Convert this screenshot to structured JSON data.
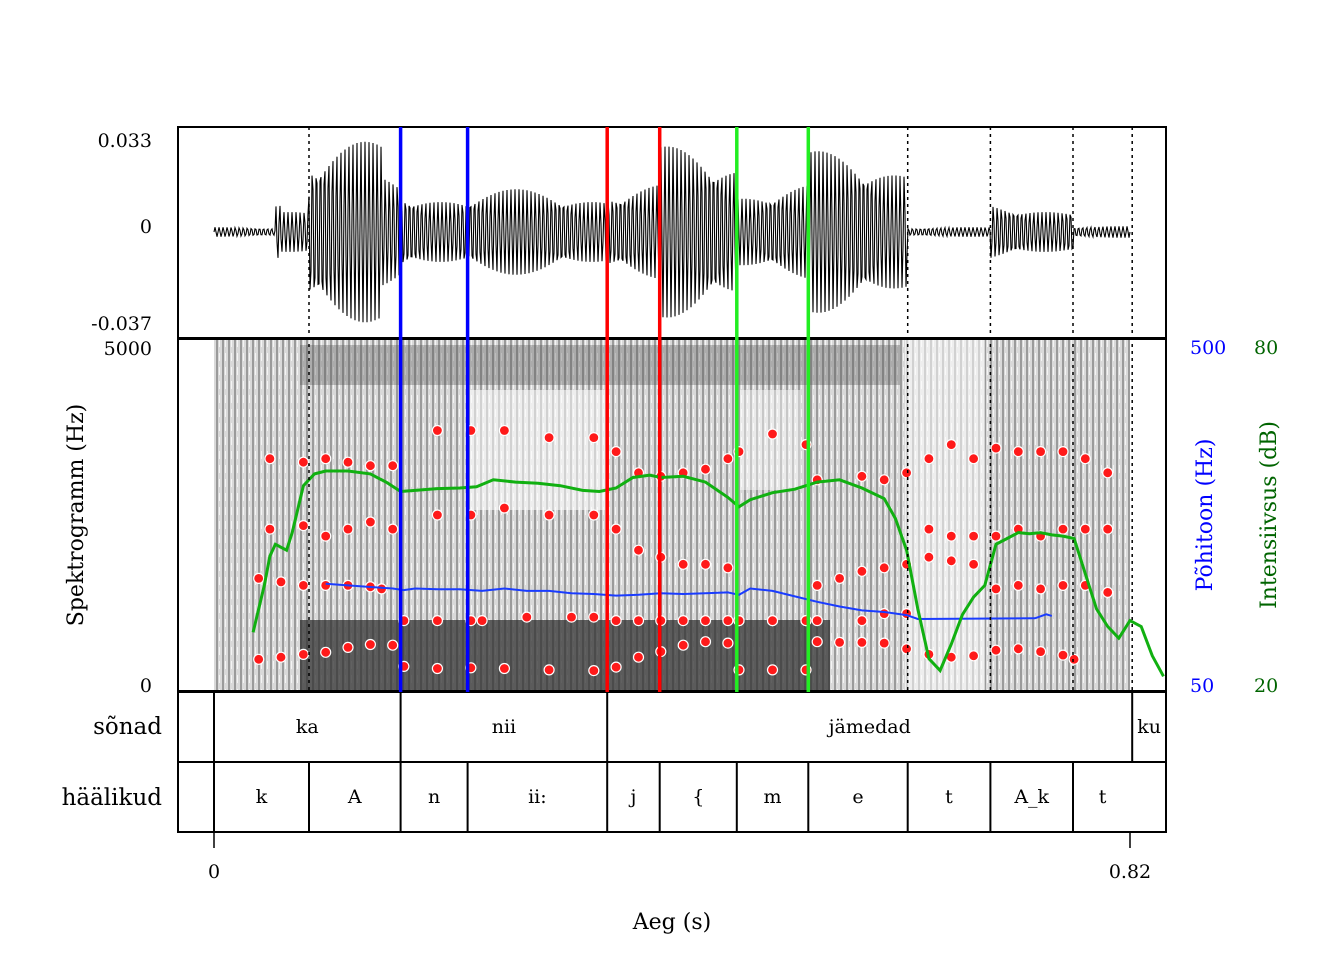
{
  "chart_data": {
    "type": "line",
    "description_words": "Praat-style speech analysis: waveform, spectrogram with formants, pitch and intensity, and TextGrid tiers",
    "xlabel": "Aeg (s)",
    "xlim": [
      0,
      0.82
    ],
    "x_ticks": [
      "0",
      "0.82"
    ],
    "waveform": {
      "ylim": [
        -0.037,
        0.033
      ],
      "y_ticks": [
        "0.033",
        "0",
        "-0.037"
      ]
    },
    "spectrogram": {
      "ylabel": "Spektrogramm (Hz)",
      "ylim": [
        0,
        5000
      ],
      "y_ticks": [
        "5000",
        "0"
      ]
    },
    "pitch": {
      "label": "Põhitoon (Hz)",
      "color": "#0000ff",
      "ylim": [
        50,
        500
      ],
      "ticks": [
        "500",
        "50"
      ]
    },
    "intensity": {
      "label": "Intensiivsus (dB)",
      "color": "#006400",
      "line_color": "#00b000",
      "ylim": [
        20,
        80
      ],
      "ticks": [
        "80",
        "20"
      ]
    },
    "boundaries": [
      {
        "t": 0.085,
        "color": "black",
        "style": "dotted"
      },
      {
        "t": 0.167,
        "color": "blue",
        "style": "solid"
      },
      {
        "t": 0.227,
        "color": "blue",
        "style": "solid"
      },
      {
        "t": 0.352,
        "color": "red",
        "style": "solid"
      },
      {
        "t": 0.399,
        "color": "red",
        "style": "solid"
      },
      {
        "t": 0.468,
        "color": "lime",
        "style": "solid"
      },
      {
        "t": 0.532,
        "color": "lime",
        "style": "solid"
      },
      {
        "t": 0.621,
        "color": "black",
        "style": "dotted"
      },
      {
        "t": 0.695,
        "color": "black",
        "style": "dotted"
      },
      {
        "t": 0.769,
        "color": "black",
        "style": "dotted"
      },
      {
        "t": 0.822,
        "color": "black",
        "style": "dotted"
      }
    ],
    "tiers": [
      {
        "name": "sõnad",
        "intervals": [
          {
            "start": 0,
            "end": 0.167,
            "label": "ka"
          },
          {
            "start": 0.167,
            "end": 0.352,
            "label": "nii"
          },
          {
            "start": 0.352,
            "end": 0.822,
            "label": "jämedad"
          },
          {
            "start": 0.822,
            "end": 0.855,
            "label": "ku"
          }
        ]
      },
      {
        "name": "häälikud",
        "intervals": [
          {
            "start": 0,
            "end": 0.085,
            "label": "k"
          },
          {
            "start": 0.085,
            "end": 0.167,
            "label": "A"
          },
          {
            "start": 0.167,
            "end": 0.227,
            "label": "n"
          },
          {
            "start": 0.227,
            "end": 0.352,
            "label": "ii:"
          },
          {
            "start": 0.352,
            "end": 0.399,
            "label": "j"
          },
          {
            "start": 0.399,
            "end": 0.468,
            "label": "{"
          },
          {
            "start": 0.468,
            "end": 0.532,
            "label": "m"
          },
          {
            "start": 0.532,
            "end": 0.621,
            "label": "e"
          },
          {
            "start": 0.621,
            "end": 0.695,
            "label": "t"
          },
          {
            "start": 0.695,
            "end": 0.769,
            "label": "A_k"
          },
          {
            "start": 0.769,
            "end": 0.822,
            "label": "t"
          }
        ]
      }
    ],
    "intensity_series": {
      "t": [
        0.035,
        0.045,
        0.05,
        0.055,
        0.065,
        0.07,
        0.08,
        0.09,
        0.1,
        0.12,
        0.14,
        0.155,
        0.167,
        0.18,
        0.2,
        0.22,
        0.235,
        0.25,
        0.27,
        0.29,
        0.31,
        0.33,
        0.345,
        0.36,
        0.375,
        0.39,
        0.4,
        0.42,
        0.44,
        0.46,
        0.47,
        0.48,
        0.5,
        0.52,
        0.54,
        0.56,
        0.58,
        0.6,
        0.61,
        0.62,
        0.63,
        0.64,
        0.65,
        0.66,
        0.67,
        0.68,
        0.69,
        0.7,
        0.71,
        0.72,
        0.73,
        0.74,
        0.75,
        0.76,
        0.77,
        0.78,
        0.79,
        0.8,
        0.81,
        0.82,
        0.83,
        0.84,
        0.85
      ],
      "db": [
        30,
        38,
        43,
        45,
        44,
        47,
        55,
        57,
        57.5,
        57.5,
        57,
        55.5,
        54,
        54.2,
        54.5,
        54.6,
        54.8,
        56,
        55.6,
        55.4,
        55,
        54.2,
        54,
        54.6,
        56.4,
        56.8,
        56.4,
        56.6,
        55.6,
        53,
        51.4,
        52.6,
        53.8,
        54.4,
        55.6,
        56,
        54.6,
        52.8,
        49.4,
        44,
        34,
        25.5,
        23.5,
        28,
        33,
        36,
        38,
        45,
        46,
        47,
        46.8,
        47,
        46.6,
        46.4,
        46,
        40,
        34,
        31,
        29,
        32,
        31,
        26,
        22.5
      ]
    },
    "pitch_series": {
      "t": [
        0.1,
        0.12,
        0.14,
        0.16,
        0.17,
        0.18,
        0.2,
        0.22,
        0.24,
        0.26,
        0.28,
        0.3,
        0.32,
        0.34,
        0.36,
        0.38,
        0.4,
        0.42,
        0.44,
        0.46,
        0.47,
        0.48,
        0.5,
        0.52,
        0.54,
        0.56,
        0.58,
        0.6,
        0.62,
        0.63,
        0.735,
        0.745,
        0.75
      ],
      "hz": [
        187,
        185,
        183,
        181,
        179,
        181,
        180,
        180,
        178,
        181,
        178,
        178,
        175,
        174,
        172,
        173,
        175,
        174,
        175,
        176,
        173,
        181,
        178,
        171,
        164,
        158,
        153,
        151,
        147,
        142,
        143,
        148,
        146
      ]
    },
    "formants": [
      {
        "name": "F1",
        "t": [
          0.04,
          0.06,
          0.08,
          0.1,
          0.12,
          0.14,
          0.16,
          0.17,
          0.2,
          0.23,
          0.26,
          0.3,
          0.34,
          0.36,
          0.38,
          0.4,
          0.42,
          0.44,
          0.46,
          0.47,
          0.5,
          0.53,
          0.54,
          0.56,
          0.58,
          0.6,
          0.62,
          0.64,
          0.66,
          0.68,
          0.7,
          0.72,
          0.74,
          0.76,
          0.77
        ],
        "hz": [
          450,
          480,
          520,
          550,
          620,
          660,
          650,
          350,
          320,
          330,
          320,
          300,
          290,
          340,
          480,
          560,
          650,
          700,
          680,
          300,
          300,
          300,
          700,
          690,
          690,
          680,
          600,
          520,
          480,
          500,
          580,
          600,
          560,
          510,
          450
        ]
      },
      {
        "name": "F2",
        "t": [
          0.04,
          0.06,
          0.08,
          0.1,
          0.12,
          0.14,
          0.15,
          0.17,
          0.2,
          0.23,
          0.24,
          0.28,
          0.32,
          0.34,
          0.36,
          0.38,
          0.4,
          0.42,
          0.44,
          0.46,
          0.47,
          0.5,
          0.53,
          0.54,
          0.56,
          0.58,
          0.6,
          0.62,
          0.64,
          0.66,
          0.68,
          0.7,
          0.72,
          0.74,
          0.76,
          0.78,
          0.8
        ],
        "hz": [
          1600,
          1550,
          1500,
          1500,
          1500,
          1480,
          1450,
          1000,
          1000,
          1000,
          1000,
          1050,
          1050,
          1050,
          1000,
          1000,
          1000,
          1000,
          1000,
          1000,
          1000,
          1000,
          1000,
          1500,
          1600,
          1700,
          1750,
          1800,
          1900,
          1850,
          1800,
          1450,
          1500,
          1450,
          1500,
          1500,
          1400
        ]
      },
      {
        "name": "F3",
        "t": [
          0.05,
          0.08,
          0.1,
          0.12,
          0.14,
          0.16,
          0.2,
          0.23,
          0.26,
          0.3,
          0.34,
          0.36,
          0.38,
          0.4,
          0.42,
          0.44,
          0.46,
          0.47,
          0.5,
          0.53,
          0.54,
          0.58,
          0.6,
          0.62,
          0.64,
          0.66,
          0.68,
          0.7,
          0.72,
          0.74,
          0.76,
          0.78,
          0.8
        ],
        "hz": [
          2300,
          2350,
          2200,
          2300,
          2400,
          2300,
          2500,
          2500,
          2600,
          2500,
          2500,
          2300,
          2000,
          1900,
          1800,
          1800,
          1750,
          1000,
          1000,
          1000,
          1000,
          1000,
          1100,
          1100,
          2300,
          2200,
          2200,
          2200,
          2300,
          2200,
          2300,
          2300,
          2300
        ]
      },
      {
        "name": "F4",
        "t": [
          0.05,
          0.08,
          0.1,
          0.12,
          0.14,
          0.16,
          0.2,
          0.23,
          0.26,
          0.3,
          0.34,
          0.36,
          0.38,
          0.4,
          0.42,
          0.44,
          0.46,
          0.47,
          0.5,
          0.53,
          0.54,
          0.58,
          0.6,
          0.62,
          0.64,
          0.66,
          0.68,
          0.7,
          0.72,
          0.74,
          0.76,
          0.78,
          0.8
        ],
        "hz": [
          3300,
          3250,
          3300,
          3250,
          3200,
          3200,
          3700,
          3700,
          3700,
          3600,
          3600,
          3400,
          3100,
          3050,
          3100,
          3150,
          3300,
          3400,
          3650,
          3500,
          3000,
          3050,
          3000,
          3100,
          3300,
          3500,
          3300,
          3450,
          3400,
          3400,
          3400,
          3300,
          3100
        ]
      }
    ]
  }
}
